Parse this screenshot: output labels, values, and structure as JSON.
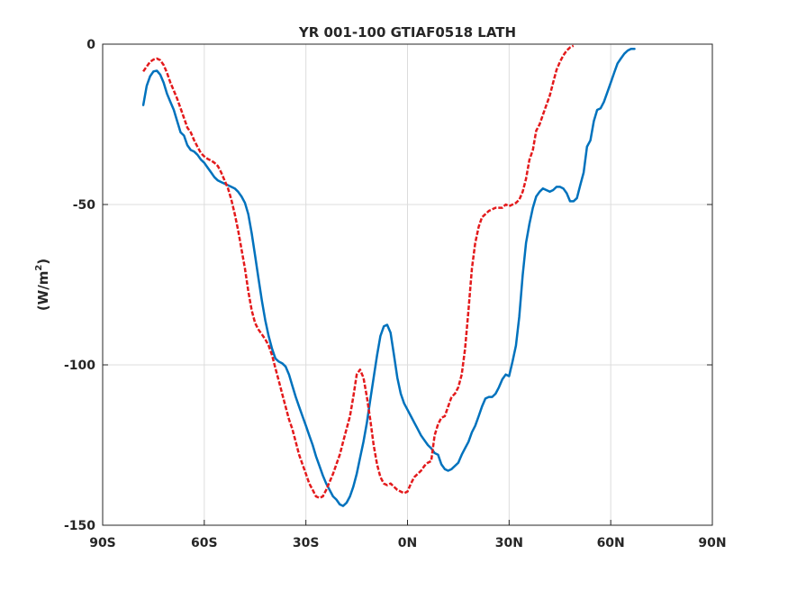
{
  "chart_data": {
    "type": "line",
    "title": "YR 001-100 GTIAF0518 LATH",
    "xlabel": "",
    "ylabel_main": "(W/m",
    "ylabel_sup": "2",
    "ylabel_close": ")",
    "xlim": [
      -90,
      90
    ],
    "ylim": [
      -150,
      0
    ],
    "xticks": [
      {
        "value": -90,
        "label": "90S"
      },
      {
        "value": -60,
        "label": "60S"
      },
      {
        "value": -30,
        "label": "30S"
      },
      {
        "value": 0,
        "label": "0N"
      },
      {
        "value": 30,
        "label": "30N"
      },
      {
        "value": 60,
        "label": "60N"
      },
      {
        "value": 90,
        "label": "90N"
      }
    ],
    "yticks": [
      {
        "value": 0,
        "label": "0"
      },
      {
        "value": -50,
        "label": "-50"
      },
      {
        "value": -100,
        "label": "-100"
      },
      {
        "value": -150,
        "label": "-150"
      }
    ],
    "grid": true,
    "series": [
      {
        "color": "#0072bd",
        "style": "solid",
        "points": [
          [
            -78,
            -19
          ],
          [
            -77,
            -13
          ],
          [
            -76,
            -10
          ],
          [
            -75,
            -8.5
          ],
          [
            -74,
            -8.3
          ],
          [
            -73,
            -9.5
          ],
          [
            -72,
            -12
          ],
          [
            -71,
            -15.5
          ],
          [
            -70,
            -18
          ],
          [
            -69,
            -20.5
          ],
          [
            -68,
            -24
          ],
          [
            -67,
            -27.5
          ],
          [
            -66,
            -28.5
          ],
          [
            -65,
            -31.5
          ],
          [
            -64,
            -33
          ],
          [
            -63,
            -33.5
          ],
          [
            -62,
            -34.5
          ],
          [
            -61,
            -36
          ],
          [
            -60,
            -37
          ],
          [
            -59,
            -38.5
          ],
          [
            -58,
            -40
          ],
          [
            -57,
            -41.5
          ],
          [
            -56,
            -42.5
          ],
          [
            -55,
            -43
          ],
          [
            -54,
            -43.5
          ],
          [
            -53,
            -44
          ],
          [
            -52,
            -44.5
          ],
          [
            -51,
            -45
          ],
          [
            -50,
            -46
          ],
          [
            -49,
            -47.5
          ],
          [
            -48,
            -49.5
          ],
          [
            -47,
            -53
          ],
          [
            -46,
            -59
          ],
          [
            -45,
            -66
          ],
          [
            -44,
            -73
          ],
          [
            -43,
            -80
          ],
          [
            -42,
            -86
          ],
          [
            -41,
            -91
          ],
          [
            -40,
            -95
          ],
          [
            -39,
            -98
          ],
          [
            -38,
            -99
          ],
          [
            -37,
            -99.5
          ],
          [
            -36,
            -100.5
          ],
          [
            -35,
            -103
          ],
          [
            -34,
            -106.5
          ],
          [
            -33,
            -110
          ],
          [
            -32,
            -113
          ],
          [
            -31,
            -116
          ],
          [
            -30,
            -119
          ],
          [
            -29,
            -122
          ],
          [
            -28,
            -125
          ],
          [
            -27,
            -128.5
          ],
          [
            -26,
            -131.5
          ],
          [
            -25,
            -134.5
          ],
          [
            -24,
            -137
          ],
          [
            -23,
            -139
          ],
          [
            -22,
            -141
          ],
          [
            -21,
            -142
          ],
          [
            -20,
            -143.5
          ],
          [
            -19,
            -144
          ],
          [
            -18,
            -143
          ],
          [
            -17,
            -141
          ],
          [
            -16,
            -138
          ],
          [
            -15,
            -134
          ],
          [
            -14,
            -129
          ],
          [
            -13,
            -124
          ],
          [
            -12,
            -118
          ],
          [
            -11,
            -111
          ],
          [
            -10,
            -104
          ],
          [
            -9,
            -97
          ],
          [
            -8,
            -91
          ],
          [
            -7,
            -88
          ],
          [
            -6,
            -87.5
          ],
          [
            -5,
            -90
          ],
          [
            -4,
            -97
          ],
          [
            -3,
            -104
          ],
          [
            -2,
            -109
          ],
          [
            -1,
            -112
          ],
          [
            0,
            -114
          ],
          [
            1,
            -116
          ],
          [
            2,
            -118
          ],
          [
            3,
            -120
          ],
          [
            4,
            -122
          ],
          [
            5,
            -123.5
          ],
          [
            6,
            -125
          ],
          [
            7,
            -126
          ],
          [
            8,
            -127.5
          ],
          [
            9,
            -128
          ],
          [
            10,
            -131
          ],
          [
            11,
            -132.5
          ],
          [
            12,
            -133
          ],
          [
            13,
            -132.5
          ],
          [
            14,
            -131.5
          ],
          [
            15,
            -130.5
          ],
          [
            16,
            -128
          ],
          [
            17,
            -126
          ],
          [
            18,
            -124
          ],
          [
            19,
            -121
          ],
          [
            20,
            -119
          ],
          [
            21,
            -116
          ],
          [
            22,
            -113
          ],
          [
            23,
            -110.5
          ],
          [
            24,
            -110
          ],
          [
            25,
            -110
          ],
          [
            26,
            -109
          ],
          [
            27,
            -107
          ],
          [
            28,
            -104.5
          ],
          [
            29,
            -103
          ],
          [
            30,
            -103.5
          ],
          [
            31,
            -99
          ],
          [
            32,
            -94
          ],
          [
            33,
            -85
          ],
          [
            34,
            -72
          ],
          [
            35,
            -62
          ],
          [
            36,
            -56
          ],
          [
            37,
            -51
          ],
          [
            38,
            -47.5
          ],
          [
            39,
            -46
          ],
          [
            40,
            -45
          ],
          [
            41,
            -45.5
          ],
          [
            42,
            -46
          ],
          [
            43,
            -45.5
          ],
          [
            44,
            -44.5
          ],
          [
            45,
            -44.5
          ],
          [
            46,
            -45
          ],
          [
            47,
            -46.5
          ],
          [
            48,
            -49
          ],
          [
            49,
            -49
          ],
          [
            50,
            -48
          ],
          [
            51,
            -44
          ],
          [
            52,
            -40
          ],
          [
            53,
            -32
          ],
          [
            54,
            -30
          ],
          [
            55,
            -24
          ],
          [
            56,
            -20.5
          ],
          [
            57,
            -20
          ],
          [
            58,
            -18
          ],
          [
            59,
            -15
          ],
          [
            60,
            -12
          ],
          [
            61,
            -9
          ],
          [
            62,
            -6
          ],
          [
            63,
            -4.5
          ],
          [
            64,
            -3
          ],
          [
            65,
            -2
          ],
          [
            66,
            -1.5
          ],
          [
            67,
            -1.5
          ]
        ]
      },
      {
        "color": "#e31a1c",
        "style": "dashed",
        "points": [
          [
            -78,
            -8.5
          ],
          [
            -77,
            -7
          ],
          [
            -76,
            -5.5
          ],
          [
            -75,
            -4.8
          ],
          [
            -74,
            -4.5
          ],
          [
            -73,
            -5
          ],
          [
            -72,
            -6.5
          ],
          [
            -71,
            -9
          ],
          [
            -70,
            -12
          ],
          [
            -69,
            -14.5
          ],
          [
            -68,
            -17
          ],
          [
            -67,
            -20
          ],
          [
            -66,
            -23
          ],
          [
            -65,
            -26
          ],
          [
            -64,
            -27.5
          ],
          [
            -63,
            -30
          ],
          [
            -62,
            -32
          ],
          [
            -61,
            -34
          ],
          [
            -60,
            -35
          ],
          [
            -59,
            -35.8
          ],
          [
            -58,
            -36.3
          ],
          [
            -57,
            -37
          ],
          [
            -56,
            -38
          ],
          [
            -55,
            -40
          ],
          [
            -54,
            -42.5
          ],
          [
            -53,
            -45
          ],
          [
            -52,
            -48.5
          ],
          [
            -51,
            -53
          ],
          [
            -50,
            -58
          ],
          [
            -49,
            -64
          ],
          [
            -48,
            -70
          ],
          [
            -47,
            -77
          ],
          [
            -46,
            -83
          ],
          [
            -45,
            -87
          ],
          [
            -44,
            -89
          ],
          [
            -43,
            -90.5
          ],
          [
            -42,
            -92
          ],
          [
            -41,
            -94
          ],
          [
            -40,
            -97
          ],
          [
            -39,
            -101
          ],
          [
            -38,
            -105
          ],
          [
            -37,
            -109
          ],
          [
            -36,
            -113
          ],
          [
            -35,
            -117
          ],
          [
            -34,
            -120
          ],
          [
            -33,
            -124
          ],
          [
            -32,
            -128
          ],
          [
            -31,
            -131
          ],
          [
            -30,
            -134
          ],
          [
            -29,
            -137
          ],
          [
            -28,
            -139
          ],
          [
            -27,
            -141
          ],
          [
            -26,
            -141.5
          ],
          [
            -25,
            -141
          ],
          [
            -24,
            -139
          ],
          [
            -23,
            -136.5
          ],
          [
            -22,
            -134
          ],
          [
            -21,
            -131
          ],
          [
            -20,
            -128
          ],
          [
            -19,
            -124
          ],
          [
            -18,
            -120
          ],
          [
            -17,
            -116
          ],
          [
            -16,
            -110
          ],
          [
            -15,
            -103
          ],
          [
            -14,
            -101.5
          ],
          [
            -13,
            -104
          ],
          [
            -12,
            -110
          ],
          [
            -11,
            -117
          ],
          [
            -10,
            -125
          ],
          [
            -9,
            -131
          ],
          [
            -8,
            -135
          ],
          [
            -7,
            -137
          ],
          [
            -6,
            -137.5
          ],
          [
            -5,
            -137
          ],
          [
            -4,
            -138
          ],
          [
            -3,
            -139
          ],
          [
            -2,
            -139.5
          ],
          [
            -1,
            -140
          ],
          [
            0,
            -139.5
          ],
          [
            1,
            -137
          ],
          [
            2,
            -135
          ],
          [
            3,
            -134
          ],
          [
            4,
            -133
          ],
          [
            5,
            -131.5
          ],
          [
            6,
            -130.5
          ],
          [
            7,
            -130
          ],
          [
            8,
            -122
          ],
          [
            9,
            -118.5
          ],
          [
            10,
            -116.5
          ],
          [
            11,
            -116
          ],
          [
            12,
            -113
          ],
          [
            13,
            -110
          ],
          [
            14,
            -109
          ],
          [
            15,
            -107
          ],
          [
            16,
            -103
          ],
          [
            17,
            -95
          ],
          [
            18,
            -83
          ],
          [
            19,
            -70
          ],
          [
            20,
            -62
          ],
          [
            21,
            -57
          ],
          [
            22,
            -54
          ],
          [
            23,
            -53
          ],
          [
            24,
            -52
          ],
          [
            25,
            -51.5
          ],
          [
            26,
            -51
          ],
          [
            27,
            -51
          ],
          [
            28,
            -51
          ],
          [
            29,
            -50
          ],
          [
            30,
            -50.5
          ],
          [
            31,
            -50
          ],
          [
            32,
            -49.5
          ],
          [
            33,
            -48.5
          ],
          [
            34,
            -46
          ],
          [
            35,
            -42
          ],
          [
            36,
            -36
          ],
          [
            37,
            -33
          ],
          [
            38,
            -27
          ],
          [
            39,
            -25
          ],
          [
            40,
            -22
          ],
          [
            41,
            -19
          ],
          [
            42,
            -16
          ],
          [
            43,
            -12
          ],
          [
            44,
            -8
          ],
          [
            45,
            -5.5
          ],
          [
            46,
            -3.5
          ],
          [
            47,
            -2
          ],
          [
            48,
            -1
          ],
          [
            49,
            -0.5
          ]
        ]
      }
    ]
  }
}
